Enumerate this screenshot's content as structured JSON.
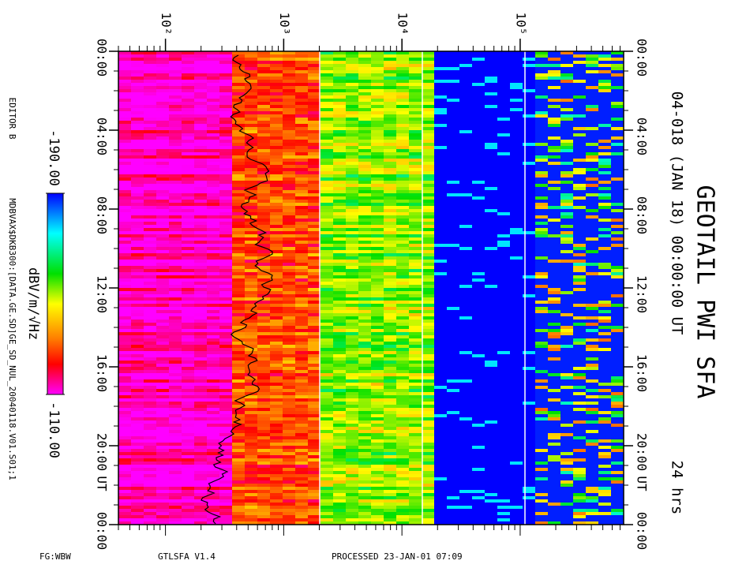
{
  "chart_data": {
    "type": "spectrogram",
    "title": "GEOTAIL PWI SFA",
    "subtitle": "04-018 (JAN 18) 00:00:00 UT",
    "duration": "24 hrs",
    "time_unit": "UT",
    "xscale": "log",
    "xlim": [
      40,
      750000
    ],
    "xticks": [
      {
        "value": 100,
        "label": "10²"
      },
      {
        "value": 1000,
        "label": "10³"
      },
      {
        "value": 10000,
        "label": "10⁴"
      },
      {
        "value": 100000,
        "label": "10⁵"
      }
    ],
    "ylim": [
      0,
      24
    ],
    "yticks": [
      {
        "value": 0,
        "label": "00:00"
      },
      {
        "value": 4,
        "label": "04:00"
      },
      {
        "value": 8,
        "label": "08:00"
      },
      {
        "value": 12,
        "label": "12:00"
      },
      {
        "value": 16,
        "label": "16:00"
      },
      {
        "value": 20,
        "label": "20:00"
      },
      {
        "value": 24,
        "label": "00:00"
      }
    ],
    "colorbar_label": "dBV/m/√Hz",
    "zlim": [
      -190,
      -110
    ],
    "zticks": [
      {
        "value": -190,
        "label": "-190.00"
      },
      {
        "value": -110,
        "label": "-110.00"
      }
    ],
    "editor": "EDITOR B",
    "file": "MDBVAX$DKB300:[DATA.GE.SD]GE_SD_NUL_20040118.V01.S01;1",
    "footer": [
      "FG:WBW",
      "GTLSFA  V1.4",
      "PROCESSED 23-JAN-01  07:09"
    ]
  }
}
